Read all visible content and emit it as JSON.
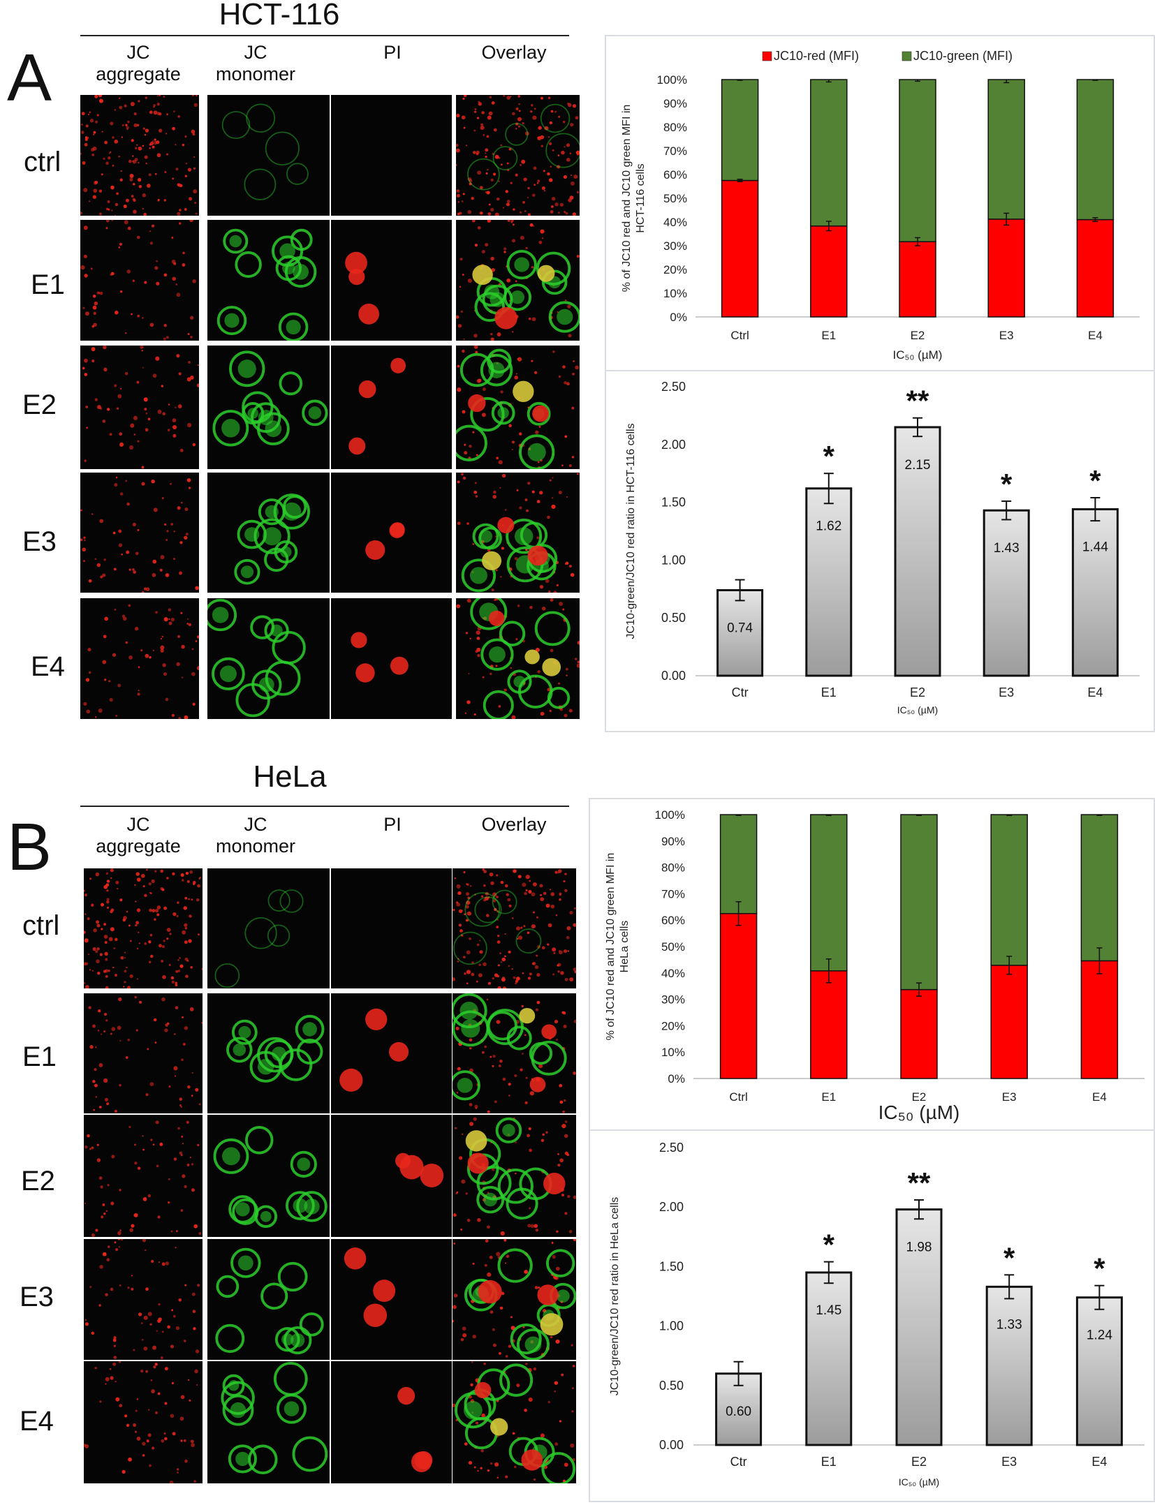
{
  "panels": [
    {
      "letter": "A",
      "cell_line": "HCT-116",
      "columns": [
        {
          "line1": "JC",
          "line2": "aggregate"
        },
        {
          "line1": "JC",
          "line2": "monomer"
        },
        {
          "line1": "",
          "line2": "PI"
        },
        {
          "line1": "",
          "line2": "Overlay"
        }
      ],
      "rows": [
        "ctrl",
        "E1",
        "E2",
        "E3",
        "E4"
      ]
    },
    {
      "letter": "B",
      "cell_line": "HeLa",
      "columns": [
        {
          "line1": "JC",
          "line2": "aggregate"
        },
        {
          "line1": "JC",
          "line2": "monomer"
        },
        {
          "line1": "",
          "line2": "PI"
        },
        {
          "line1": "",
          "line2": "Overlay"
        }
      ],
      "rows": [
        "ctrl",
        "E1",
        "E2",
        "E3",
        "E4"
      ]
    }
  ],
  "colors": {
    "red_series": "#ff0000",
    "green_series": "#548235",
    "ratio_bar_top": "#e6e6e6",
    "ratio_bar_bottom": "#9c9c9c"
  },
  "chart_data": [
    {
      "id": "A-stacked",
      "type": "bar",
      "stacked": true,
      "categories": [
        "Ctrl",
        "E1",
        "E2",
        "E3",
        "E4"
      ],
      "series": [
        {
          "name": "JC10-red (MFI)",
          "values": [
            57.5,
            38.3,
            31.7,
            41.2,
            41.0
          ],
          "errors": [
            0.5,
            2.0,
            1.7,
            2.5,
            0.8
          ]
        },
        {
          "name": "JC10-green (MFI)",
          "values": [
            42.5,
            61.7,
            68.3,
            58.8,
            59.0
          ],
          "errors": [
            0.3,
            1.0,
            0.7,
            1.3,
            0.3
          ]
        }
      ],
      "ylabel_lines": [
        "% of JC10 red and JC10 green MFI in",
        "HCT-116 cells"
      ],
      "xlabel": "IC₅₀ (µM)",
      "ylim": [
        0,
        100
      ],
      "yticks": [
        "0%",
        "10%",
        "20%",
        "30%",
        "40%",
        "50%",
        "60%",
        "70%",
        "80%",
        "90%",
        "100%"
      ],
      "legend_position": "top"
    },
    {
      "id": "A-ratio",
      "type": "bar",
      "categories": [
        "Ctr",
        "E1",
        "E2",
        "E3",
        "E4"
      ],
      "values": [
        0.74,
        1.62,
        2.15,
        1.43,
        1.44
      ],
      "value_labels": [
        "0.74",
        "1.62",
        "2.15",
        "1.43",
        "1.44"
      ],
      "errors": [
        0.09,
        0.13,
        0.08,
        0.08,
        0.1
      ],
      "significance": [
        "",
        "*",
        "**",
        "*",
        "*"
      ],
      "ylabel": "JC10-green/JC10 red ratio in HCT-116 cells",
      "xlabel": "IC₅₀ (µM)",
      "ylim": [
        0,
        2.5
      ],
      "yticks": [
        "0.00",
        "0.50",
        "1.00",
        "1.50",
        "2.00",
        "2.50"
      ]
    },
    {
      "id": "B-stacked",
      "type": "bar",
      "stacked": true,
      "categories": [
        "Ctrl",
        "E1",
        "E2",
        "E3",
        "E4"
      ],
      "series": [
        {
          "name": "JC10-red (MFI)",
          "values": [
            62.5,
            40.8,
            33.7,
            42.9,
            44.6
          ],
          "errors": [
            4.5,
            4.5,
            2.5,
            3.4,
            4.9
          ]
        },
        {
          "name": "JC10-green (MFI)",
          "values": [
            37.5,
            59.2,
            66.3,
            57.1,
            55.4
          ],
          "errors": [
            0.3,
            0.3,
            0.3,
            0.3,
            0.3
          ]
        }
      ],
      "ylabel_lines": [
        "% of JC10 red and JC10 green MFI in",
        "HeLa cells"
      ],
      "xlabel": "IC₅₀ (µM)",
      "ylim": [
        0,
        100
      ],
      "yticks": [
        "0%",
        "10%",
        "20%",
        "30%",
        "40%",
        "50%",
        "60%",
        "70%",
        "80%",
        "90%",
        "100%"
      ]
    },
    {
      "id": "B-ratio",
      "type": "bar",
      "categories": [
        "Ctr",
        "E1",
        "E2",
        "E3",
        "E4"
      ],
      "values": [
        0.6,
        1.45,
        1.98,
        1.33,
        1.24
      ],
      "value_labels": [
        "0.60",
        "1.45",
        "1.98",
        "1.33",
        "1.24"
      ],
      "errors": [
        0.1,
        0.09,
        0.08,
        0.1,
        0.1
      ],
      "significance": [
        "",
        "*",
        "**",
        "*",
        "*"
      ],
      "ylabel": "JC10-green/JC10 red ratio in HeLa cells",
      "xlabel": "IC₅₀ (µM)",
      "ylim": [
        0,
        2.5
      ],
      "yticks": [
        "0.00",
        "0.50",
        "1.00",
        "1.50",
        "2.00",
        "2.50"
      ]
    }
  ]
}
